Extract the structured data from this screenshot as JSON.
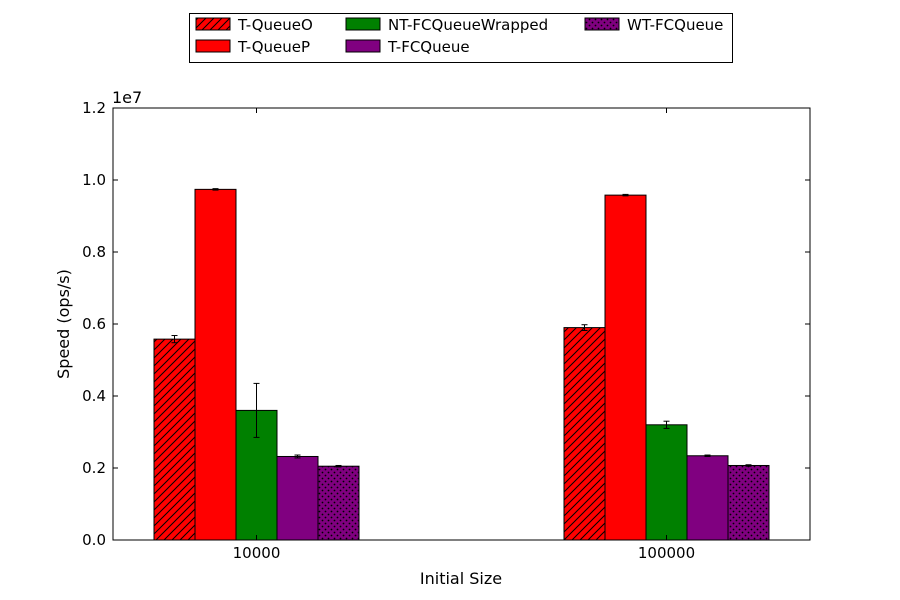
{
  "chart_data": {
    "type": "bar",
    "title": "",
    "xlabel": "Initial Size",
    "ylabel": "Speed (ops/s)",
    "yscale_label": "1e7",
    "ylim": [
      0,
      1.2
    ],
    "yticks": [
      "0.0",
      "0.2",
      "0.4",
      "0.6",
      "0.8",
      "1.0",
      "1.2"
    ],
    "grid": false,
    "legend_position": "top-center",
    "categories": [
      "10000",
      "100000"
    ],
    "series": [
      {
        "name": "T-QueueO",
        "color": "#ff0000",
        "pattern": "hatch-diagonal",
        "values": [
          0.558,
          0.59
        ],
        "errors": [
          0.01,
          0.008
        ]
      },
      {
        "name": "T-QueueP",
        "color": "#ff0000",
        "pattern": "solid",
        "values": [
          0.974,
          0.958
        ],
        "errors": [
          0.002,
          0.002
        ]
      },
      {
        "name": "NT-FCQueueWrapped",
        "color": "#008000",
        "pattern": "solid",
        "values": [
          0.36,
          0.32
        ],
        "errors": [
          0.075,
          0.01
        ]
      },
      {
        "name": "T-FCQueue",
        "color": "#800080",
        "pattern": "solid",
        "values": [
          0.232,
          0.234
        ],
        "errors": [
          0.004,
          0.002
        ]
      },
      {
        "name": "WT-FCQueue",
        "color": "#800080",
        "pattern": "dots",
        "values": [
          0.205,
          0.207
        ],
        "errors": [
          0.002,
          0.002
        ]
      }
    ]
  }
}
